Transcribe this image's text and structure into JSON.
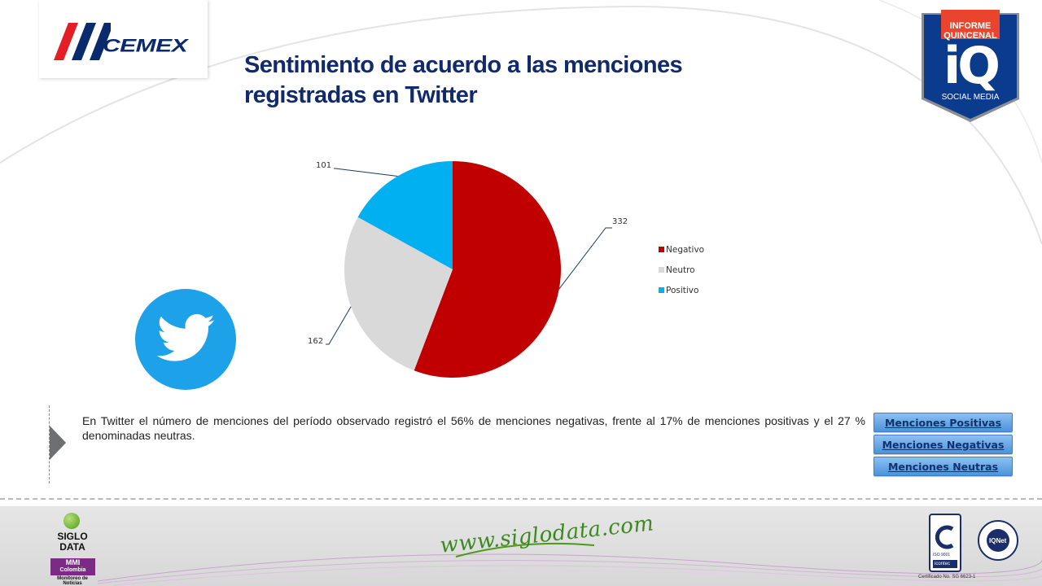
{
  "header": {
    "brand": "CEMEX",
    "title_line1": "Sentimiento de acuerdo a las menciones",
    "title_line2": "registradas en Twitter"
  },
  "badge": {
    "line1": "INFORME",
    "line2": "QUINCENAL",
    "logo": "iQ",
    "line3": "SOCIAL MEDIA"
  },
  "chart_data": {
    "type": "pie",
    "categories": [
      "Negativo",
      "Neutro",
      "Positivo"
    ],
    "values": [
      332,
      162,
      101
    ],
    "colors": [
      "#c00000",
      "#d9d9d9",
      "#00b0f0"
    ],
    "legend": "right"
  },
  "summary": "En Twitter el número de menciones del período observado registró el 56% de menciones negativas, frente al 17% de menciones positivas y  el 27 % denominadas neutras.",
  "buttons": {
    "positivas": "Menciones Positivas",
    "negativas": "Menciones Negativas",
    "neutras": "Menciones Neutras"
  },
  "footer": {
    "sd_line1": "SIGLO",
    "sd_line2": "DATA",
    "sd_mmi": "MMI",
    "sd_country": "Colombia",
    "sd_tagline": "Monitoreo de Noticias",
    "website": "www.siglodata.com",
    "iso": "ISO 9001",
    "icontec": "icontec",
    "iqnet": "IQNet",
    "certificate": "Certificado No. SG 6623-1"
  },
  "icons": [
    "twitter-bird-icon",
    "play-arrow-icon"
  ]
}
